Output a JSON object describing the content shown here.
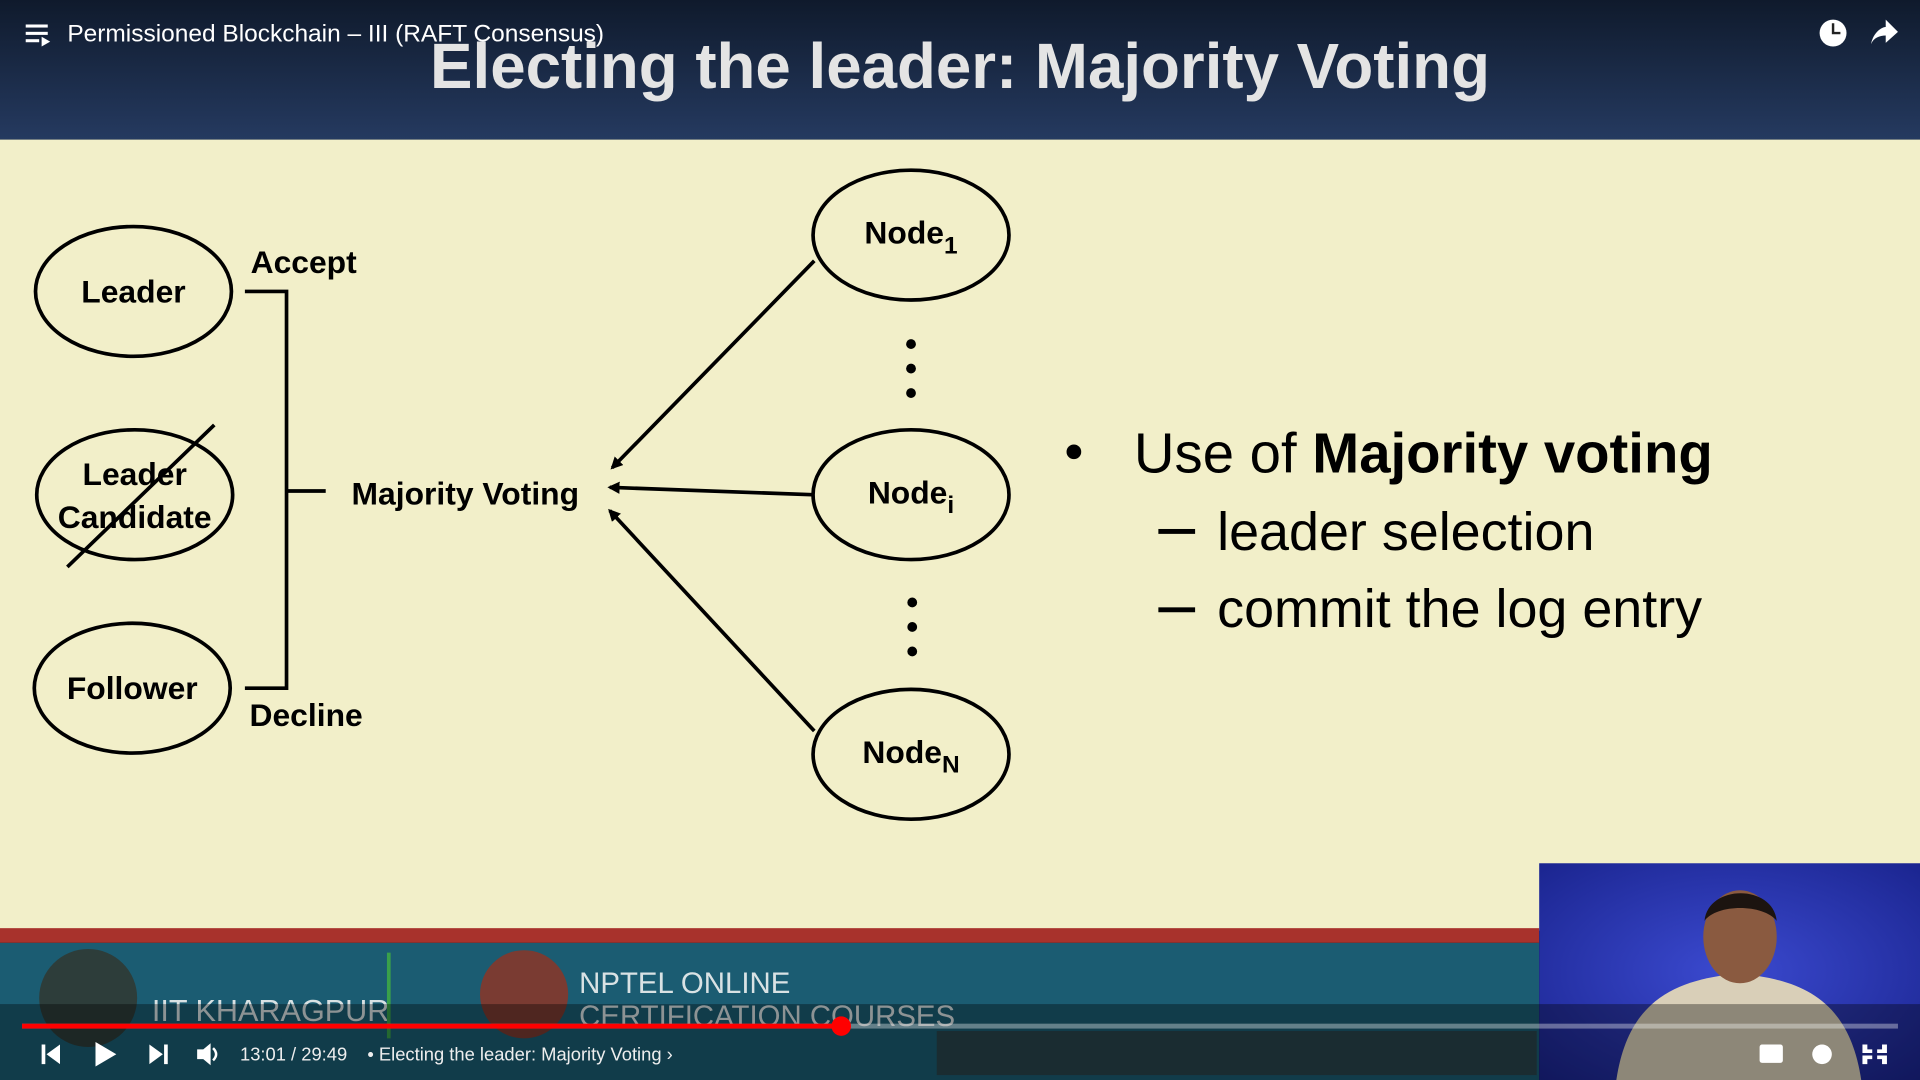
{
  "player": {
    "video_title": "Permissioned Blockchain – III (RAFT Consensus)",
    "time": "13:01 / 29:49",
    "chapter": "• Electing the leader: Majority Voting ›"
  },
  "slide": {
    "title": "Electing the leader: Majority Voting",
    "roles": [
      {
        "lines": [
          "Leader"
        ]
      },
      {
        "lines": [
          "Leader",
          "Candidate"
        ]
      },
      {
        "lines": [
          "Follower"
        ]
      }
    ],
    "accept": "Accept",
    "decline": "Decline",
    "majority": "Majority Voting",
    "nodes": [
      {
        "label": "Node",
        "subscript": "1"
      },
      {
        "label": "Node",
        "subscript": "i"
      },
      {
        "label": "Node",
        "subscript": "N"
      }
    ],
    "bullet": {
      "prefix": "Use of ",
      "bold": "Majority voting",
      "subitems": [
        "leader selection",
        "commit the log entry"
      ]
    }
  },
  "footer": {
    "institute": "IIT KHARAGPUR",
    "nptel_line1": "NPTEL ONLINE",
    "nptel_line2": "CERTIFICATION COURSES"
  }
}
